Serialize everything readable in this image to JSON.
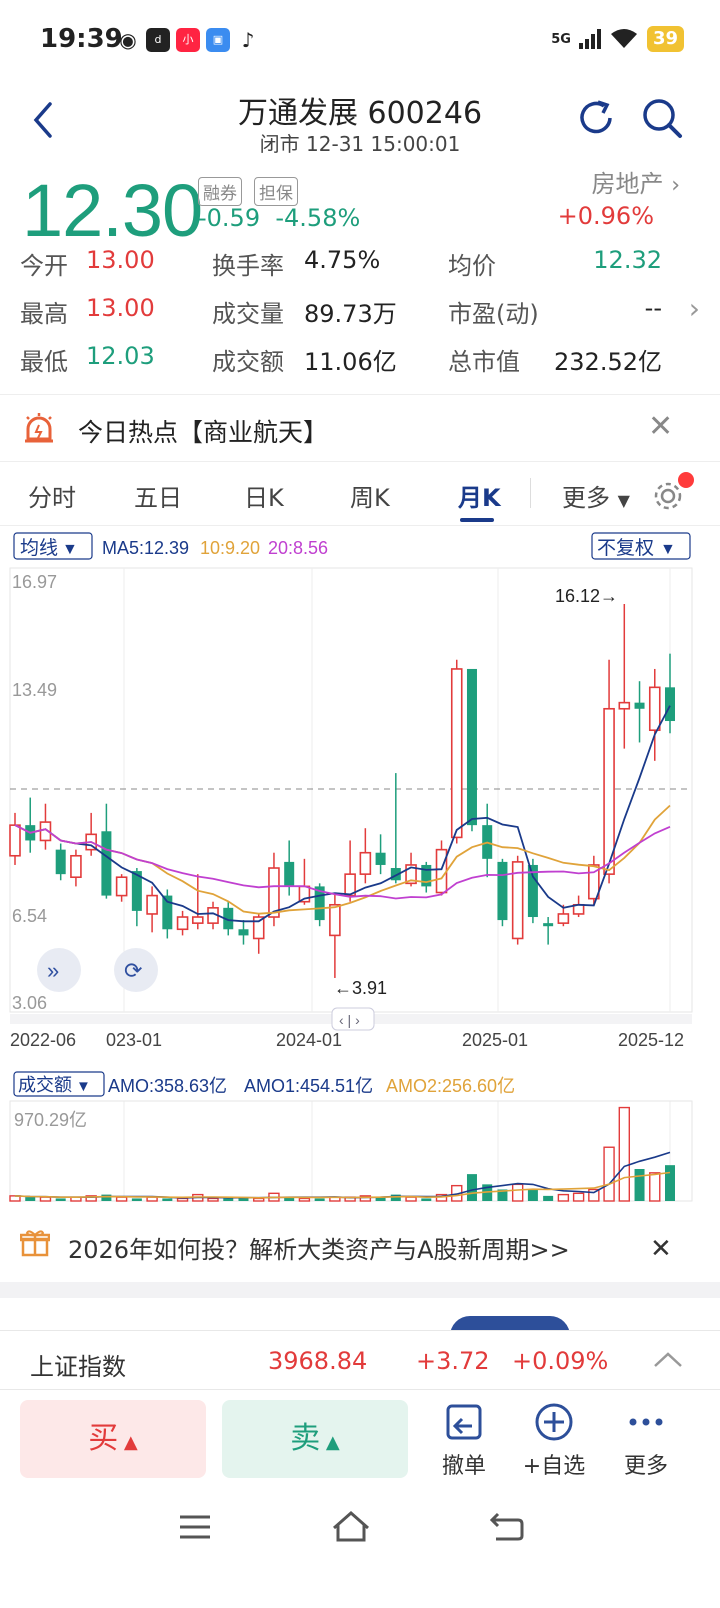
{
  "status_bar": {
    "time": "19:39",
    "network": "5G",
    "battery": "39",
    "app_icons": [
      "weibo-icon",
      "douyu-icon",
      "xiaohongshu-icon",
      "app-icon",
      "tiktok-icon"
    ]
  },
  "header": {
    "title": "万通发展 600246",
    "subtitle": "闭市 12-31 15:00:01"
  },
  "quote": {
    "price": "12.30",
    "tag1": "融券",
    "tag2": "担保",
    "change": "-0.59",
    "change_pct": "-4.58%",
    "sector": "房地产",
    "sector_change": "+0.96%",
    "rows": [
      [
        {
          "label": "今开",
          "value": "13.00"
        },
        {
          "label": "换手率",
          "value": "4.75%"
        },
        {
          "label": "均价",
          "value": "12.32"
        }
      ],
      [
        {
          "label": "最高",
          "value": "13.00"
        },
        {
          "label": "成交量",
          "value": "89.73万"
        },
        {
          "label": "市盈(动)",
          "value": "--"
        }
      ],
      [
        {
          "label": "最低",
          "value": "12.03"
        },
        {
          "label": "成交额",
          "value": "11.06亿"
        },
        {
          "label": "总市值",
          "value": "232.52亿"
        }
      ]
    ]
  },
  "hot": {
    "text": "今日热点【商业航天】"
  },
  "tabs": [
    "分时",
    "五日",
    "日K",
    "周K",
    "月K",
    "更多"
  ],
  "active_tab": "月K",
  "chart": {
    "ma_selector": "均线",
    "ma5": "MA5:12.39",
    "ma10": "10:9.20",
    "ma20": "20:8.56",
    "adjust": "不复权",
    "y_labels": [
      "16.97",
      "13.49",
      "6.54",
      "3.06"
    ],
    "x_labels": [
      "2022-06",
      "023-01",
      "2024-01",
      "2025-01",
      "2025-12"
    ],
    "max_label": "16.12→",
    "min_label": "←3.91",
    "volume_selector": "成交额",
    "amo": "AMO:358.63亿",
    "amo1": "AMO1:454.51亿",
    "amo2": "AMO2:256.60亿",
    "vol_max_label": "970.29亿",
    "colors": {
      "up": "#e23b3b",
      "down": "#1e9e7c",
      "ma5": "#1a3a8a",
      "ma10": "#e0a33a",
      "ma20": "#c040d0"
    }
  },
  "banner": {
    "text": "2026年如何投？解析大类资产与A股新周期>>"
  },
  "index_bar": {
    "name": "上证指数",
    "value": "3968.84",
    "change": "+3.72",
    "change_pct": "+0.09%"
  },
  "trade": {
    "buy": "买",
    "sell": "卖",
    "cancel": "撤单",
    "watch": "+自选",
    "more": "更多"
  }
}
